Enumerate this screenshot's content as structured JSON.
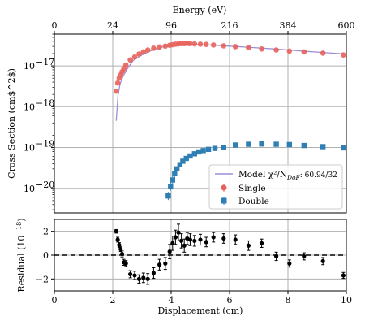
{
  "chart_data": [
    {
      "type": "scatter",
      "panel": "main",
      "ylabel": "Cross Section (cm$^2$)",
      "yscale": "log",
      "ylim": [
        2.5e-21,
        6e-17
      ],
      "xlim": [
        0,
        10
      ],
      "yticks": [
        {
          "value": 1e-20,
          "label": "10",
          "exp": "−20"
        },
        {
          "value": 1e-19,
          "label": "10",
          "exp": "−19"
        },
        {
          "value": 1e-18,
          "label": "10",
          "exp": "−18"
        },
        {
          "value": 1e-17,
          "label": "10",
          "exp": "−17"
        }
      ],
      "top_axis": {
        "label": "Energy (eV)",
        "ticks": [
          {
            "x": 0,
            "label": "0"
          },
          {
            "x": 2,
            "label": "24"
          },
          {
            "x": 4,
            "label": "96"
          },
          {
            "x": 6,
            "label": "216"
          },
          {
            "x": 8,
            "label": "384"
          },
          {
            "x": 10,
            "label": "600"
          }
        ]
      },
      "grid": true,
      "legend_position": "lower-right",
      "legend": {
        "model": "Model χ²/N",
        "model_sub": "DoF",
        "model_value": ": 60.94/32",
        "single": "Single",
        "double": "Double"
      },
      "colors": {
        "model": "#9b8fd8",
        "single": "#e8605a",
        "double": "#2f7fb5"
      },
      "model": {
        "x": [
          2.12,
          2.18,
          2.25,
          2.35,
          2.5,
          2.7,
          3.0,
          3.3,
          3.7,
          4.1,
          4.5,
          5.0,
          5.5,
          6.0,
          6.5,
          7.0,
          7.5,
          8.0,
          8.5,
          9.0,
          9.5,
          10.0
        ],
        "y": [
          4.5e-19,
          1.9e-18,
          3.6e-18,
          5.5e-18,
          8.5e-18,
          1.35e-17,
          1.85e-17,
          2.35e-17,
          2.9e-17,
          3.2e-17,
          3.35e-17,
          3.3e-17,
          3.2e-17,
          3.05e-17,
          2.9e-17,
          2.75e-17,
          2.6e-17,
          2.45e-17,
          2.3e-17,
          2.18e-17,
          2.05e-17,
          1.95e-17
        ]
      },
      "series": [
        {
          "name": "Single",
          "marker": "circle",
          "x": [
            2.12,
            2.17,
            2.22,
            2.27,
            2.32,
            2.38,
            2.45,
            2.6,
            2.75,
            2.9,
            3.05,
            3.2,
            3.4,
            3.6,
            3.8,
            3.95,
            4.05,
            4.15,
            4.25,
            4.35,
            4.45,
            4.55,
            4.65,
            4.8,
            5.0,
            5.2,
            5.45,
            5.8,
            6.2,
            6.65,
            7.1,
            7.6,
            8.05,
            8.55,
            9.2,
            9.9
          ],
          "y": [
            2.4e-18,
            3.8e-18,
            5e-18,
            6e-18,
            7.2e-18,
            8.5e-18,
            1.05e-17,
            1.4e-17,
            1.65e-17,
            1.95e-17,
            2.2e-17,
            2.45e-17,
            2.7e-17,
            2.9e-17,
            3.05e-17,
            3.2e-17,
            3.3e-17,
            3.4e-17,
            3.45e-17,
            3.5e-17,
            3.5e-17,
            3.55e-17,
            3.5e-17,
            3.45e-17,
            3.4e-17,
            3.35e-17,
            3.25e-17,
            3.1e-17,
            2.95e-17,
            2.8e-17,
            2.6e-17,
            2.45e-17,
            2.3e-17,
            2.2e-17,
            2.05e-17,
            1.85e-17
          ]
        },
        {
          "name": "Double",
          "marker": "square",
          "x": [
            3.9,
            3.98,
            4.05,
            4.12,
            4.2,
            4.3,
            4.4,
            4.52,
            4.65,
            4.8,
            4.95,
            5.1,
            5.28,
            5.5,
            5.8,
            6.2,
            6.65,
            7.1,
            7.6,
            8.05,
            8.55,
            9.2,
            9.9
          ],
          "y": [
            6.5e-21,
            1.1e-20,
            1.6e-20,
            2.3e-20,
            3e-20,
            3.8e-20,
            4.6e-20,
            5.4e-20,
            6.2e-20,
            7e-20,
            7.8e-20,
            8.4e-20,
            9e-20,
            9.5e-20,
            1e-19,
            1.15e-19,
            1.2e-19,
            1.22e-19,
            1.2e-19,
            1.18e-19,
            1.12e-19,
            1.05e-19,
            9.8e-20
          ]
        }
      ]
    },
    {
      "type": "scatter",
      "panel": "residual",
      "xlabel": "Displacement (cm)",
      "ylabel": "Residual (10",
      "ylabel_exp": "−18",
      "ylabel_end": ")",
      "xlim": [
        0,
        10
      ],
      "ylim": [
        -3,
        3
      ],
      "xticks": [
        {
          "x": 0,
          "label": "0"
        },
        {
          "x": 2,
          "label": "2"
        },
        {
          "x": 4,
          "label": "4"
        },
        {
          "x": 6,
          "label": "6"
        },
        {
          "x": 8,
          "label": "8"
        },
        {
          "x": 10,
          "label": "10"
        }
      ],
      "yticks": [
        {
          "value": -2,
          "label": "−2"
        },
        {
          "value": 0,
          "label": "0"
        },
        {
          "value": 2,
          "label": "2"
        }
      ],
      "grid": true,
      "reference_line": 0,
      "series": [
        {
          "name": "Residual",
          "marker": "circle",
          "x": [
            2.12,
            2.17,
            2.22,
            2.27,
            2.32,
            2.38,
            2.45,
            2.6,
            2.75,
            2.9,
            3.05,
            3.2,
            3.4,
            3.6,
            3.8,
            3.95,
            4.05,
            4.15,
            4.25,
            4.35,
            4.45,
            4.55,
            4.65,
            4.8,
            5.0,
            5.2,
            5.45,
            5.8,
            6.2,
            6.65,
            7.1,
            7.6,
            8.05,
            8.55,
            9.2,
            9.9
          ],
          "y": [
            2.0,
            1.3,
            0.85,
            0.5,
            0.1,
            -0.6,
            -0.7,
            -1.6,
            -1.7,
            -2.0,
            -1.9,
            -2.0,
            -1.5,
            -0.8,
            -0.7,
            0.3,
            1.0,
            1.5,
            1.9,
            1.2,
            0.8,
            1.4,
            1.3,
            1.2,
            1.3,
            1.1,
            1.5,
            1.4,
            1.3,
            0.8,
            1.0,
            -0.1,
            -0.7,
            -0.1,
            -0.5,
            -1.7
          ],
          "err": [
            0.15,
            0.2,
            0.2,
            0.2,
            0.25,
            0.25,
            0.25,
            0.3,
            0.35,
            0.35,
            0.4,
            0.45,
            0.45,
            0.45,
            0.5,
            0.6,
            0.6,
            0.6,
            0.7,
            0.6,
            0.55,
            0.5,
            0.5,
            0.45,
            0.45,
            0.4,
            0.4,
            0.4,
            0.4,
            0.4,
            0.35,
            0.35,
            0.3,
            0.3,
            0.3,
            0.25
          ]
        }
      ]
    }
  ]
}
